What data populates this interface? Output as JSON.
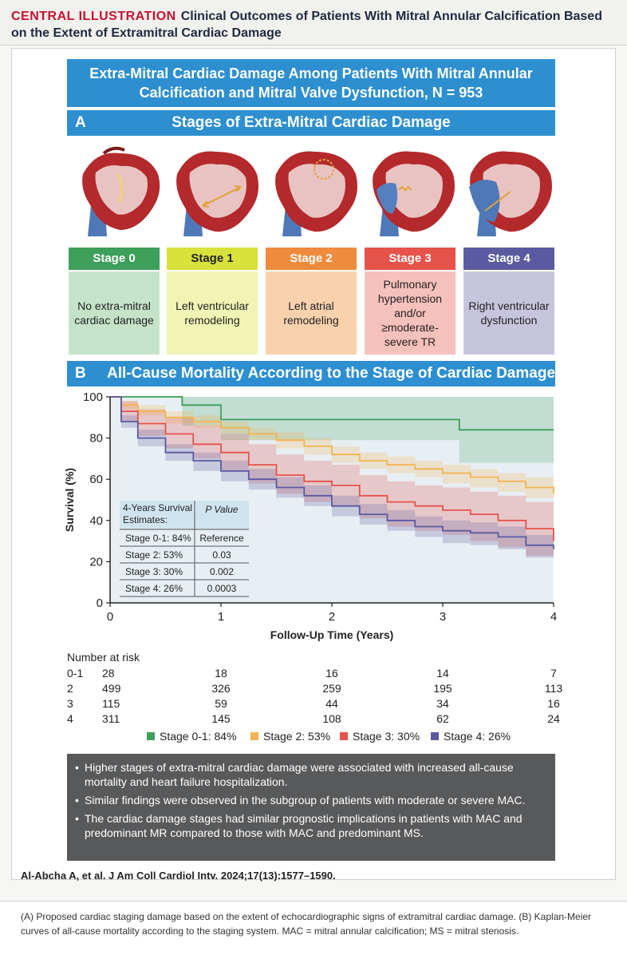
{
  "header": {
    "tag": "CENTRAL ILLUSTRATION",
    "title": "Clinical Outcomes of Patients With Mitral Annular Calcification Based on the Extent of Extramitral Cardiac Damage"
  },
  "main_banner": "Extra-Mitral Cardiac Damage Among Patients With Mitral Annular Calcification and Mitral Valve Dysfunction, N = 953",
  "section_a": {
    "letter": "A",
    "title": "Stages of Extra-Mitral Cardiac Damage"
  },
  "stages": [
    {
      "label": "Stage 0",
      "desc": "No extra-mitral cardiac damage",
      "head_color": "#3d9f5a",
      "body_color": "#c5e3c9",
      "text_color": "#ffffff"
    },
    {
      "label": "Stage 1",
      "desc": "Left ventricular remodeling",
      "head_color": "#d8e23a",
      "body_color": "#f0f4b4",
      "text_color": "#222222"
    },
    {
      "label": "Stage 2",
      "desc": "Left atrial remodeling",
      "head_color": "#ef8b3c",
      "body_color": "#f9d1ad",
      "text_color": "#ffffff"
    },
    {
      "label": "Stage 3",
      "desc": "Pulmonary hypertension and/or ≥moderate-severe TR",
      "head_color": "#e5534b",
      "body_color": "#f6c0bb",
      "text_color": "#ffffff"
    },
    {
      "label": "Stage 4",
      "desc": "Right ventricular dysfunction",
      "head_color": "#5b5aa0",
      "body_color": "#c7c5de",
      "text_color": "#ffffff"
    }
  ],
  "section_b": {
    "letter": "B",
    "title": "All-Cause Mortality According to the Stage of Cardiac Damage"
  },
  "chart_data": {
    "type": "line",
    "subtype": "kaplan-meier",
    "xlabel": "Follow-Up Time (Years)",
    "ylabel": "Survival (%)",
    "xlim": [
      0,
      4
    ],
    "ylim": [
      0,
      100
    ],
    "x_ticks": [
      0,
      1,
      2,
      3,
      4
    ],
    "y_ticks": [
      0,
      20,
      40,
      60,
      80,
      100
    ],
    "series": [
      {
        "name": "Stage 0-1: 84%",
        "color": "#3d9f5a",
        "x": [
          0,
          0.65,
          0.65,
          1.0,
          1.0,
          3.15,
          3.15,
          4.0
        ],
        "y": [
          100,
          100,
          96,
          96,
          89,
          89,
          84,
          84
        ],
        "ci_lower": [
          100,
          100,
          86,
          86,
          79,
          79,
          68,
          68
        ],
        "ci_upper": [
          100,
          100,
          100,
          100,
          100,
          100,
          100,
          100
        ]
      },
      {
        "name": "Stage 2: 53%",
        "color": "#f2b451",
        "x": [
          0,
          0.1,
          0.25,
          0.5,
          0.75,
          1.0,
          1.25,
          1.5,
          1.75,
          2.0,
          2.25,
          2.5,
          2.75,
          3.0,
          3.25,
          3.5,
          3.75,
          4.0
        ],
        "y": [
          100,
          96,
          93,
          90,
          88,
          85,
          82,
          79,
          76,
          72,
          69,
          67,
          65,
          63,
          61,
          59,
          56,
          53
        ],
        "ci_lower": [
          100,
          94,
          91,
          87,
          85,
          82,
          79,
          75,
          72,
          68,
          65,
          63,
          61,
          58,
          56,
          54,
          51,
          49
        ],
        "ci_upper": [
          100,
          98,
          96,
          93,
          91,
          88,
          85,
          83,
          80,
          76,
          73,
          71,
          69,
          67,
          65,
          63,
          61,
          58
        ]
      },
      {
        "name": "Stage 3: 30%",
        "color": "#e5534b",
        "x": [
          0,
          0.1,
          0.25,
          0.5,
          0.75,
          1.0,
          1.25,
          1.5,
          1.75,
          2.0,
          2.25,
          2.5,
          2.75,
          3.0,
          3.25,
          3.5,
          3.75,
          4.0
        ],
        "y": [
          100,
          93,
          87,
          82,
          77,
          73,
          67,
          62,
          59,
          57,
          52,
          49,
          47,
          45,
          43,
          40,
          36,
          30
        ],
        "ci_lower": [
          100,
          88,
          81,
          75,
          70,
          64,
          58,
          53,
          49,
          47,
          41,
          37,
          35,
          33,
          30,
          27,
          23,
          17
        ],
        "ci_upper": [
          100,
          98,
          94,
          90,
          86,
          82,
          77,
          72,
          69,
          67,
          62,
          59,
          57,
          56,
          54,
          52,
          49,
          44
        ]
      },
      {
        "name": "Stage 4: 26%",
        "color": "#5b5aa0",
        "x": [
          0,
          0.1,
          0.25,
          0.5,
          0.75,
          1.0,
          1.25,
          1.5,
          1.75,
          2.0,
          2.25,
          2.5,
          2.75,
          3.0,
          3.25,
          3.5,
          3.75,
          4.0
        ],
        "y": [
          100,
          88,
          80,
          73,
          69,
          64,
          60,
          56,
          52,
          47,
          43,
          40,
          37,
          35,
          34,
          32,
          28,
          26
        ],
        "ci_lower": [
          100,
          85,
          76,
          69,
          64,
          59,
          55,
          51,
          47,
          42,
          38,
          35,
          32,
          29,
          28,
          26,
          22,
          20
        ],
        "ci_upper": [
          100,
          91,
          84,
          77,
          73,
          69,
          65,
          61,
          57,
          52,
          48,
          45,
          42,
          40,
          39,
          37,
          33,
          31
        ]
      }
    ],
    "inset_table": {
      "headers": [
        "4-Years Survival Estimates:",
        "P Value"
      ],
      "rows": [
        [
          "Stage 0-1: 84%",
          "Reference"
        ],
        [
          "Stage 2: 53%",
          "0.03"
        ],
        [
          "Stage 3: 30%",
          "0.002"
        ],
        [
          "Stage 4: 26%",
          "0.0003"
        ]
      ]
    },
    "number_at_risk": {
      "title": "Number at risk",
      "rows": [
        {
          "label": "0-1",
          "values": [
            "28",
            "18",
            "16",
            "14",
            "7"
          ]
        },
        {
          "label": "2",
          "values": [
            "499",
            "326",
            "259",
            "195",
            "113"
          ]
        },
        {
          "label": "3",
          "values": [
            "115",
            "59",
            "44",
            "34",
            "16"
          ]
        },
        {
          "label": "4",
          "values": [
            "311",
            "145",
            "108",
            "62",
            "24"
          ]
        }
      ]
    }
  },
  "findings": [
    "Higher stages of extra-mitral cardiac damage were associated with increased all-cause mortality and heart failure hospitalization.",
    "Similar findings were observed in the subgroup of patients with moderate or severe MAC.",
    "The cardiac damage stages had similar prognostic implications in patients with MAC and predominant MR compared to those with MAC and predominant MS."
  ],
  "citation": "Al-Abcha A, et al. J Am Coll Cardiol Intv. 2024;17(13):1577–1590.",
  "caption": "(A) Proposed cardiac staging damage based on the extent of echocardiographic signs of extramitral cardiac damage. (B) Kaplan-Meier curves of all-cause mortality according to the staging system. MAC = mitral annular calcification; MS = mitral stenosis."
}
